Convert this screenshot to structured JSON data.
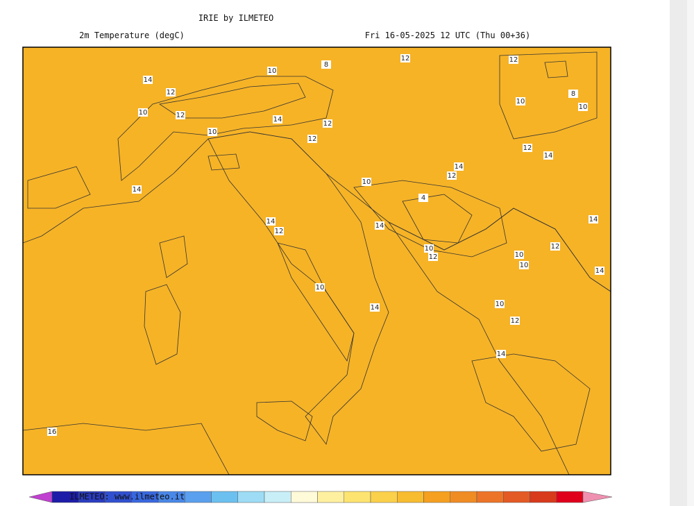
{
  "header": {
    "title": "IRIE by ILMETEO",
    "subtitle": "2m Temperature (degC)",
    "timestamp": "Fri 16-05-2025 12 UTC (Thu 00+36)"
  },
  "map": {
    "contour_labels": [
      "14",
      "12",
      "10",
      "12",
      "10",
      "14",
      "10",
      "8",
      "12",
      "12",
      "12",
      "10",
      "8",
      "10",
      "12",
      "14",
      "14",
      "12",
      "12",
      "14",
      "10",
      "14",
      "12",
      "14",
      "4",
      "10",
      "12",
      "14",
      "12",
      "10",
      "10",
      "14",
      "10",
      "14",
      "10",
      "12",
      "14",
      "16"
    ]
  },
  "colorbar": {
    "colors": [
      "#1c1ca8",
      "#2a3cc0",
      "#3050d0",
      "#3868e0",
      "#4a88e8",
      "#5aa0ee",
      "#6cc0f0",
      "#9ddcf4",
      "#c8eef8",
      "#fffad8",
      "#fff0a0",
      "#fde470",
      "#fbd04a",
      "#f8bc30",
      "#f5a020",
      "#f08c24",
      "#ec7428",
      "#e45a24",
      "#d83a1c",
      "#e0001c"
    ],
    "left_arrow_color": "#c040d0",
    "right_arrow_color": "#f090b0",
    "credit": "ILMETEO: www.ilmeteo.it"
  }
}
